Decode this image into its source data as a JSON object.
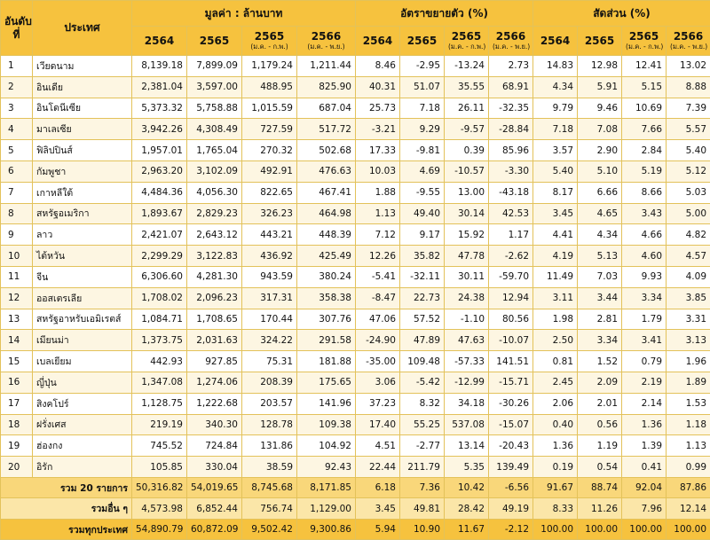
{
  "header": {
    "rank_label": "อันดับที่",
    "country_label": "ประเทศ",
    "groups": [
      "มูลค่า : ล้านบาท",
      "อัตราขยายตัว (%)",
      "สัดส่วน (%)"
    ],
    "years": [
      {
        "year": "2564",
        "sub": ""
      },
      {
        "year": "2565",
        "sub": ""
      },
      {
        "year": "2565",
        "sub": "(ม.ค. - ก.พ.)"
      },
      {
        "year": "2566",
        "sub": "(ม.ค. - พ.ย.)"
      }
    ]
  },
  "rows": [
    {
      "rank": "1",
      "name": "เวียดนาม",
      "v": [
        "8,139.18",
        "7,899.09",
        "1,179.24",
        "1,211.44"
      ],
      "g": [
        "8.46",
        "-2.95",
        "-13.24",
        "2.73"
      ],
      "s": [
        "14.83",
        "12.98",
        "12.41",
        "13.02"
      ]
    },
    {
      "rank": "2",
      "name": "อินเดีย",
      "v": [
        "2,381.04",
        "3,597.00",
        "488.95",
        "825.90"
      ],
      "g": [
        "40.31",
        "51.07",
        "35.55",
        "68.91"
      ],
      "s": [
        "4.34",
        "5.91",
        "5.15",
        "8.88"
      ]
    },
    {
      "rank": "3",
      "name": "อินโดนีเซีย",
      "v": [
        "5,373.32",
        "5,758.88",
        "1,015.59",
        "687.04"
      ],
      "g": [
        "25.73",
        "7.18",
        "26.11",
        "-32.35"
      ],
      "s": [
        "9.79",
        "9.46",
        "10.69",
        "7.39"
      ]
    },
    {
      "rank": "4",
      "name": "มาเลเซีย",
      "v": [
        "3,942.26",
        "4,308.49",
        "727.59",
        "517.72"
      ],
      "g": [
        "-3.21",
        "9.29",
        "-9.57",
        "-28.84"
      ],
      "s": [
        "7.18",
        "7.08",
        "7.66",
        "5.57"
      ]
    },
    {
      "rank": "5",
      "name": "ฟิลิปปินส์",
      "v": [
        "1,957.01",
        "1,765.04",
        "270.32",
        "502.68"
      ],
      "g": [
        "17.33",
        "-9.81",
        "0.39",
        "85.96"
      ],
      "s": [
        "3.57",
        "2.90",
        "2.84",
        "5.40"
      ]
    },
    {
      "rank": "6",
      "name": "กัมพูชา",
      "v": [
        "2,963.20",
        "3,102.09",
        "492.91",
        "476.63"
      ],
      "g": [
        "10.03",
        "4.69",
        "-10.57",
        "-3.30"
      ],
      "s": [
        "5.40",
        "5.10",
        "5.19",
        "5.12"
      ]
    },
    {
      "rank": "7",
      "name": "เกาหลีใต้",
      "v": [
        "4,484.36",
        "4,056.30",
        "822.65",
        "467.41"
      ],
      "g": [
        "1.88",
        "-9.55",
        "13.00",
        "-43.18"
      ],
      "s": [
        "8.17",
        "6.66",
        "8.66",
        "5.03"
      ]
    },
    {
      "rank": "8",
      "name": "สหรัฐอเมริกา",
      "v": [
        "1,893.67",
        "2,829.23",
        "326.23",
        "464.98"
      ],
      "g": [
        "1.13",
        "49.40",
        "30.14",
        "42.53"
      ],
      "s": [
        "3.45",
        "4.65",
        "3.43",
        "5.00"
      ]
    },
    {
      "rank": "9",
      "name": "ลาว",
      "v": [
        "2,421.07",
        "2,643.12",
        "443.21",
        "448.39"
      ],
      "g": [
        "7.12",
        "9.17",
        "15.92",
        "1.17"
      ],
      "s": [
        "4.41",
        "4.34",
        "4.66",
        "4.82"
      ]
    },
    {
      "rank": "10",
      "name": "ไต้หวัน",
      "v": [
        "2,299.29",
        "3,122.83",
        "436.92",
        "425.49"
      ],
      "g": [
        "12.26",
        "35.82",
        "47.78",
        "-2.62"
      ],
      "s": [
        "4.19",
        "5.13",
        "4.60",
        "4.57"
      ]
    },
    {
      "rank": "11",
      "name": "จีน",
      "v": [
        "6,306.60",
        "4,281.30",
        "943.59",
        "380.24"
      ],
      "g": [
        "-5.41",
        "-32.11",
        "30.11",
        "-59.70"
      ],
      "s": [
        "11.49",
        "7.03",
        "9.93",
        "4.09"
      ]
    },
    {
      "rank": "12",
      "name": "ออสเตรเลีย",
      "v": [
        "1,708.02",
        "2,096.23",
        "317.31",
        "358.38"
      ],
      "g": [
        "-8.47",
        "22.73",
        "24.38",
        "12.94"
      ],
      "s": [
        "3.11",
        "3.44",
        "3.34",
        "3.85"
      ]
    },
    {
      "rank": "13",
      "name": "สหรัฐอาหรับเอมิเรตส์",
      "v": [
        "1,084.71",
        "1,708.65",
        "170.44",
        "307.76"
      ],
      "g": [
        "47.06",
        "57.52",
        "-1.10",
        "80.56"
      ],
      "s": [
        "1.98",
        "2.81",
        "1.79",
        "3.31"
      ]
    },
    {
      "rank": "14",
      "name": "เมียนม่า",
      "v": [
        "1,373.75",
        "2,031.63",
        "324.22",
        "291.58"
      ],
      "g": [
        "-24.90",
        "47.89",
        "47.63",
        "-10.07"
      ],
      "s": [
        "2.50",
        "3.34",
        "3.41",
        "3.13"
      ]
    },
    {
      "rank": "15",
      "name": "เบลเยียม",
      "v": [
        "442.93",
        "927.85",
        "75.31",
        "181.88"
      ],
      "g": [
        "-35.00",
        "109.48",
        "-57.33",
        "141.51"
      ],
      "s": [
        "0.81",
        "1.52",
        "0.79",
        "1.96"
      ]
    },
    {
      "rank": "16",
      "name": "ญี่ปุ่น",
      "v": [
        "1,347.08",
        "1,274.06",
        "208.39",
        "175.65"
      ],
      "g": [
        "3.06",
        "-5.42",
        "-12.99",
        "-15.71"
      ],
      "s": [
        "2.45",
        "2.09",
        "2.19",
        "1.89"
      ]
    },
    {
      "rank": "17",
      "name": "สิงคโปร์",
      "v": [
        "1,128.75",
        "1,222.68",
        "203.57",
        "141.96"
      ],
      "g": [
        "37.23",
        "8.32",
        "34.18",
        "-30.26"
      ],
      "s": [
        "2.06",
        "2.01",
        "2.14",
        "1.53"
      ]
    },
    {
      "rank": "18",
      "name": "ฝรั่งเศส",
      "v": [
        "219.19",
        "340.30",
        "128.78",
        "109.38"
      ],
      "g": [
        "17.40",
        "55.25",
        "537.08",
        "-15.07"
      ],
      "s": [
        "0.40",
        "0.56",
        "1.36",
        "1.18"
      ]
    },
    {
      "rank": "19",
      "name": "ฮ่องกง",
      "v": [
        "745.52",
        "724.84",
        "131.86",
        "104.92"
      ],
      "g": [
        "4.51",
        "-2.77",
        "13.14",
        "-20.43"
      ],
      "s": [
        "1.36",
        "1.19",
        "1.39",
        "1.13"
      ]
    },
    {
      "rank": "20",
      "name": "อิรัก",
      "v": [
        "105.85",
        "330.04",
        "38.59",
        "92.43"
      ],
      "g": [
        "22.44",
        "211.79",
        "5.35",
        "139.49"
      ],
      "s": [
        "0.19",
        "0.54",
        "0.41",
        "0.99"
      ]
    }
  ],
  "summary": [
    {
      "label": "รวม 20 รายการ",
      "v": [
        "50,316.82",
        "54,019.65",
        "8,745.68",
        "8,171.85"
      ],
      "g": [
        "6.18",
        "7.36",
        "10.42",
        "-6.56"
      ],
      "s": [
        "91.67",
        "88.74",
        "92.04",
        "87.86"
      ]
    },
    {
      "label": "รวมอื่น ๆ",
      "v": [
        "4,573.98",
        "6,852.44",
        "756.74",
        "1,129.00"
      ],
      "g": [
        "3.45",
        "49.81",
        "28.42",
        "49.19"
      ],
      "s": [
        "8.33",
        "11.26",
        "7.96",
        "12.14"
      ]
    },
    {
      "label": "รวมทุกประเทศ",
      "v": [
        "54,890.79",
        "60,872.09",
        "9,502.42",
        "9,300.86"
      ],
      "g": [
        "5.94",
        "10.90",
        "11.67",
        "-2.12"
      ],
      "s": [
        "100.00",
        "100.00",
        "100.00",
        "100.00"
      ]
    }
  ]
}
